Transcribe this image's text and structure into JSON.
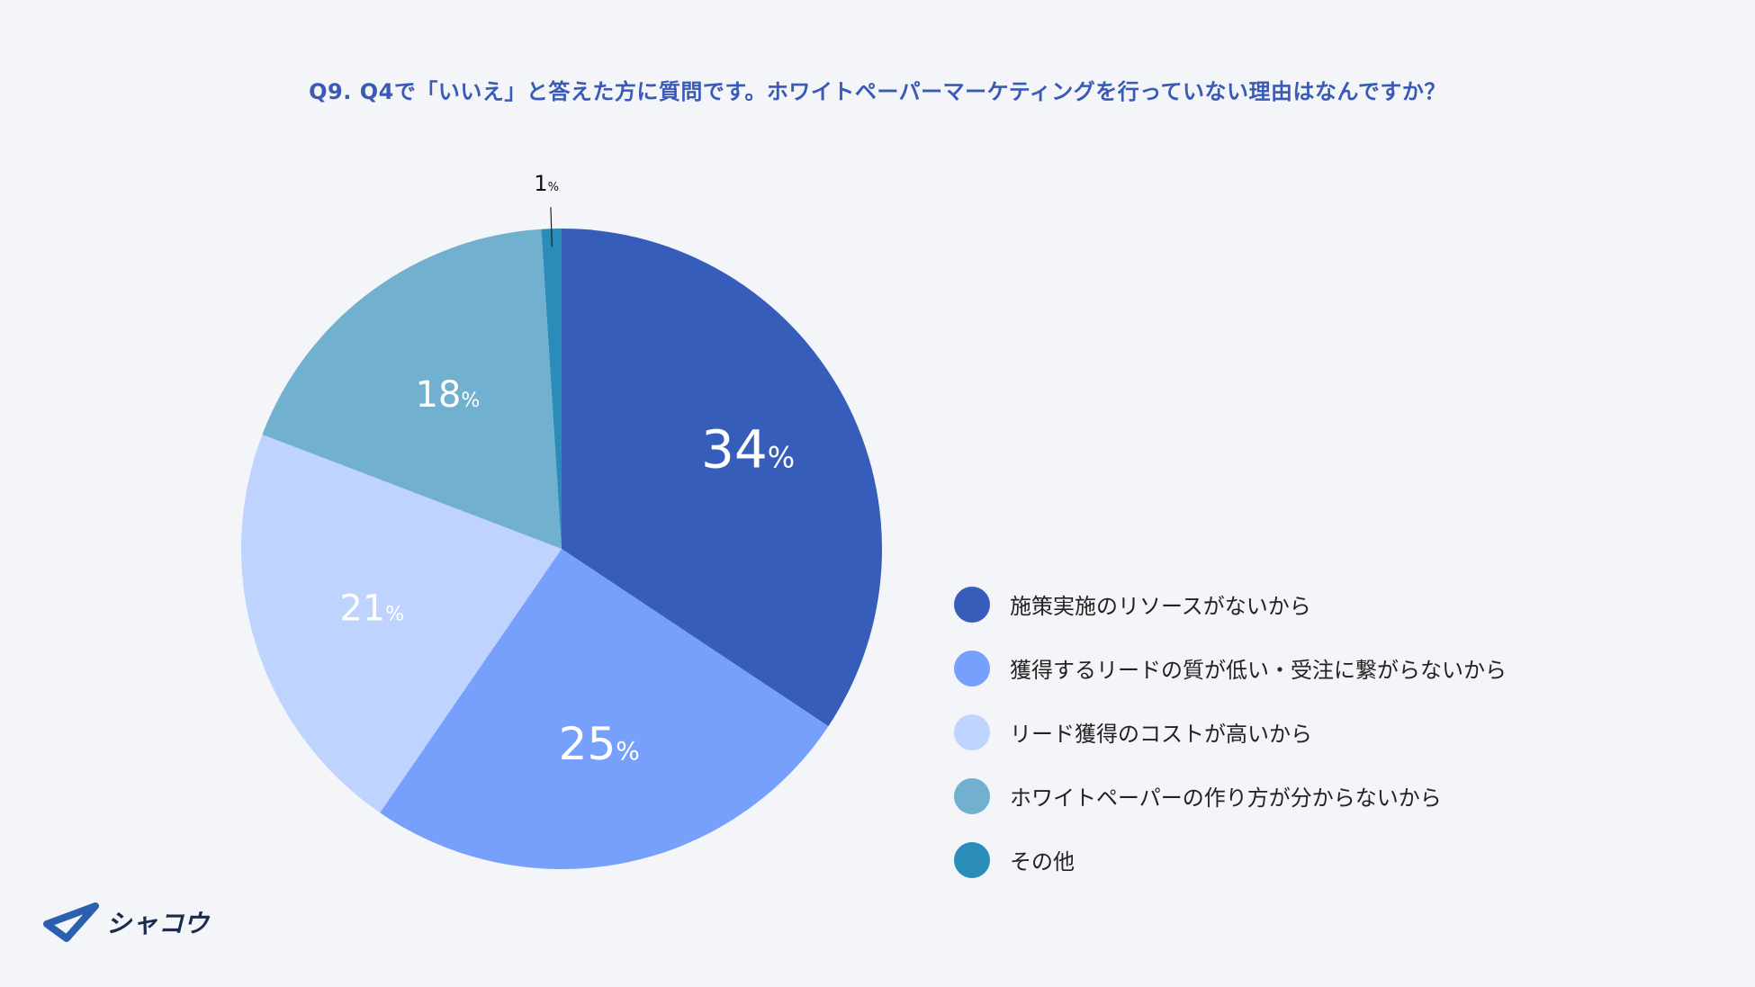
{
  "chart_data": {
    "type": "pie",
    "title": "Q9. Q4で「いいえ」と答えた方に質問です。ホワイトペーパーマーケティングを行っていない理由はなんですか？",
    "unit": "%",
    "slices": [
      {
        "label": "施策実施のリソースがないから",
        "value": 34,
        "color": "#365dba"
      },
      {
        "label": "獲得するリードの質が低い・受注に繋がらないから",
        "value": 25,
        "color": "#779ffc"
      },
      {
        "label": "リード獲得のコストが高いから",
        "value": 21,
        "color": "#bed3fd"
      },
      {
        "label": "ホワイトペーパーの作り方が分からないから",
        "value": 18,
        "color": "#72b0d0"
      },
      {
        "label": "その他",
        "value": 1,
        "color": "#2a8cb9"
      }
    ],
    "legend_position": "right"
  },
  "logo": {
    "text": "シャコウ",
    "color": "#2b5fb0"
  }
}
